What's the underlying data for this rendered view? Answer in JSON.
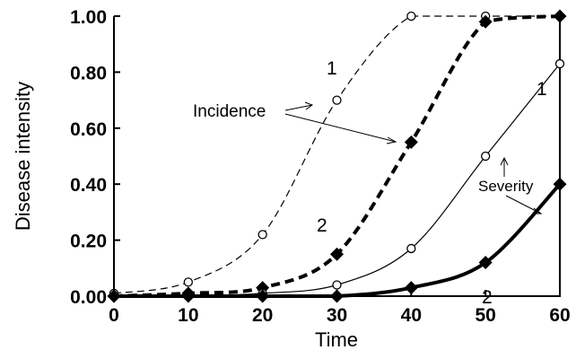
{
  "chart_data": {
    "type": "line",
    "title": "",
    "xlabel": "Time",
    "ylabel": "Disease intensity",
    "xlim": [
      0,
      60
    ],
    "ylim": [
      0,
      1
    ],
    "x_ticks": [
      "0",
      "10",
      "20",
      "30",
      "40",
      "50",
      "60"
    ],
    "y_ticks": [
      "0.00",
      "0.20",
      "0.40",
      "0.60",
      "0.80",
      "1.00"
    ],
    "grid": false,
    "legend": "none",
    "series": [
      {
        "key": "incidence_1",
        "style": "thin-dashed",
        "marker": "open-circle",
        "color": "#000000",
        "points": [
          [
            0,
            0.01
          ],
          [
            10,
            0.05
          ],
          [
            20,
            0.22
          ],
          [
            30,
            0.7
          ],
          [
            40,
            1.0
          ],
          [
            50,
            1.0
          ],
          [
            60,
            1.0
          ]
        ]
      },
      {
        "key": "incidence_2",
        "style": "thick-dashed",
        "marker": "filled-diamond",
        "color": "#000000",
        "points": [
          [
            0,
            0.0
          ],
          [
            10,
            0.01
          ],
          [
            20,
            0.03
          ],
          [
            30,
            0.15
          ],
          [
            40,
            0.55
          ],
          [
            50,
            0.98
          ],
          [
            60,
            1.0
          ]
        ]
      },
      {
        "key": "severity_1",
        "style": "thin-solid",
        "marker": "open-circle",
        "color": "#000000",
        "points": [
          [
            0,
            0.0
          ],
          [
            10,
            0.0
          ],
          [
            20,
            0.01
          ],
          [
            30,
            0.04
          ],
          [
            40,
            0.17
          ],
          [
            50,
            0.5
          ],
          [
            60,
            0.83
          ]
        ]
      },
      {
        "key": "severity_2",
        "style": "thick-solid",
        "marker": "filled-diamond",
        "color": "#000000",
        "points": [
          [
            0,
            0.0
          ],
          [
            10,
            0.0
          ],
          [
            20,
            0.0
          ],
          [
            30,
            0.0
          ],
          [
            40,
            0.03
          ],
          [
            50,
            0.12
          ],
          [
            60,
            0.4
          ]
        ]
      }
    ],
    "annotations": {
      "incidence": "Incidence",
      "severity": "Severity",
      "curve_1": "1",
      "curve_2": "2"
    }
  }
}
